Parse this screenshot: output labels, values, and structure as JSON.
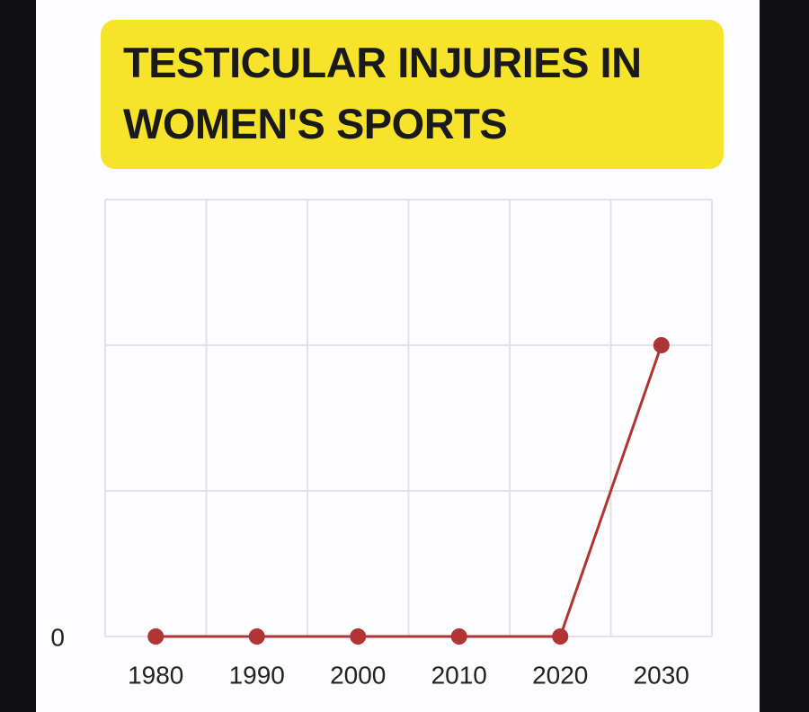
{
  "chart_data": {
    "type": "line",
    "title": "TESTICULAR INJURIES IN WOMEN'S SPORTS",
    "categories": [
      "1980",
      "1990",
      "2000",
      "2010",
      "2020",
      "2030"
    ],
    "values": [
      0,
      0,
      0,
      0,
      0,
      2
    ],
    "color": "#b03434",
    "ylim": [
      0,
      3
    ],
    "yticks": [
      0
    ],
    "grid": true
  }
}
